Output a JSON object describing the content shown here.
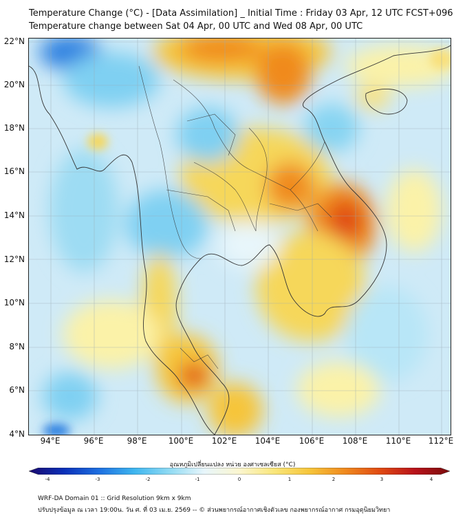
{
  "title": {
    "line1": "Temperature Change (°C) - [Data Assimilation] _ Initial Time : Friday 03 Apr, 12 UTC FCST+096",
    "line2": "Temperature change between Sat 04 Apr, 00 UTC and Wed 08 Apr, 00 UTC"
  },
  "map": {
    "lat_labels": [
      "22°N",
      "20°N",
      "18°N",
      "16°N",
      "14°N",
      "12°N",
      "10°N",
      "8°N",
      "6°N",
      "4°N"
    ],
    "lon_labels": [
      "94°E",
      "96°E",
      "98°E",
      "100°E",
      "102°E",
      "104°E",
      "106°E",
      "108°E",
      "110°E",
      "112°E"
    ],
    "base_color": "#cfeaf7",
    "grid_color": "#9aaab3",
    "border_color": "#333333"
  },
  "colorbar": {
    "title": "อุณหภูมิเปลี่ยนแปลง หน่วย องศาเซลเซียส (°C)",
    "ticks": [
      "-4",
      "-3",
      "-2",
      "-1",
      "0",
      "1",
      "2",
      "3",
      "4"
    ],
    "min": -4,
    "max": 4,
    "colors": [
      "#1a0a6e",
      "#0a2fb8",
      "#1d6fe0",
      "#3db5ef",
      "#8fdaf3",
      "#e8f6fb",
      "#fbf6cf",
      "#f9e67a",
      "#f6c53a",
      "#f08a1e",
      "#e04a12",
      "#b8121a",
      "#7a0c0c"
    ]
  },
  "footer": {
    "line1": "WRF-DA Domain 01 :: Grid Resolution 9km x 9km",
    "line2": "ปรับปรุงข้อมูล ณ เวลา 19:00น. วัน ศ. ที่ 03 เม.ย. 2569 -- © ส่วนพยากรณ์อากาศเชิงตัวเลข กองพยากรณ์อากาศ กรมอุตุนิยมวิทยา"
  }
}
